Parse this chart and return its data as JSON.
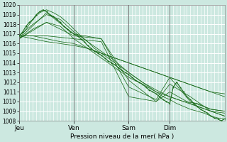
{
  "title": "",
  "xlabel": "Pression niveau de la mer( hPa )",
  "bg_color": "#cce8e0",
  "plot_bg_color": "#cce8e0",
  "grid_color": "#ffffff",
  "line_color": "#1a6b1a",
  "ylim": [
    1008,
    1020
  ],
  "ytick_step": 1,
  "xtick_minor_step": 6,
  "day_labels": [
    "Jeu",
    "Ven",
    "Sam",
    "Dim"
  ],
  "day_positions": [
    0,
    96,
    192,
    264
  ],
  "total_steps": 360,
  "lines": [
    {
      "x": [
        0,
        12,
        24,
        36,
        48,
        60,
        72,
        84,
        96,
        108,
        120,
        132,
        144,
        156,
        168,
        180,
        192,
        204,
        216,
        228,
        240,
        252,
        264,
        276,
        288,
        300,
        312,
        324,
        336,
        348,
        360
      ],
      "y": [
        1016.5,
        1017.5,
        1018.5,
        1019.2,
        1019.5,
        1019.2,
        1018.8,
        1018.2,
        1017.5,
        1016.8,
        1016.2,
        1015.5,
        1015.0,
        1014.5,
        1014.0,
        1013.5,
        1013.0,
        1012.5,
        1012.0,
        1011.5,
        1011.0,
        1010.5,
        1010.2,
        1009.8,
        1009.5,
        1009.2,
        1009.0,
        1008.8,
        1008.5,
        1008.3,
        1008.2
      ]
    },
    {
      "x": [
        0,
        24,
        48,
        72,
        96,
        120,
        144,
        168,
        192,
        216,
        240,
        264,
        288,
        312,
        336,
        360
      ],
      "y": [
        1016.8,
        1018.0,
        1019.0,
        1018.5,
        1017.2,
        1016.2,
        1015.2,
        1014.2,
        1013.0,
        1012.0,
        1011.2,
        1010.5,
        1010.0,
        1009.5,
        1009.0,
        1008.5
      ]
    },
    {
      "x": [
        0,
        24,
        48,
        72,
        96,
        120,
        144,
        168,
        192,
        216,
        240,
        264,
        288,
        312,
        336,
        360
      ],
      "y": [
        1016.5,
        1017.5,
        1018.2,
        1017.8,
        1016.5,
        1015.5,
        1014.5,
        1013.5,
        1012.5,
        1011.8,
        1011.0,
        1010.5,
        1010.0,
        1009.8,
        1009.2,
        1009.0
      ]
    },
    {
      "x": [
        0,
        24,
        48,
        72,
        96,
        120,
        144,
        168,
        192,
        216,
        240,
        264,
        288,
        312,
        336,
        360
      ],
      "y": [
        1016.8,
        1016.8,
        1016.5,
        1016.2,
        1016.0,
        1015.5,
        1015.0,
        1014.5,
        1014.0,
        1013.5,
        1013.0,
        1012.5,
        1012.0,
        1011.5,
        1011.0,
        1010.8
      ]
    },
    {
      "x": [
        0,
        24,
        48,
        72,
        96,
        120,
        144,
        168,
        192,
        216,
        240,
        264,
        288,
        312,
        336,
        360
      ],
      "y": [
        1016.8,
        1016.5,
        1016.2,
        1016.0,
        1015.8,
        1015.5,
        1015.0,
        1014.5,
        1014.0,
        1013.5,
        1013.0,
        1012.5,
        1012.0,
        1011.5,
        1011.0,
        1010.5
      ]
    },
    {
      "x": [
        0,
        48,
        96,
        144,
        192,
        240,
        264,
        300,
        336,
        360
      ],
      "y": [
        1016.5,
        1019.2,
        1017.0,
        1016.5,
        1012.2,
        1010.0,
        1011.8,
        1010.5,
        1009.0,
        1008.5
      ]
    },
    {
      "x": [
        0,
        48,
        96,
        144,
        192,
        240,
        264,
        300,
        336,
        360
      ],
      "y": [
        1016.5,
        1018.2,
        1016.8,
        1016.5,
        1011.5,
        1010.2,
        1012.5,
        1010.0,
        1009.2,
        1009.0
      ]
    },
    {
      "x": [
        0,
        48,
        96,
        144,
        192,
        240,
        264,
        300,
        336,
        360
      ],
      "y": [
        1016.8,
        1016.8,
        1016.5,
        1016.2,
        1010.5,
        1010.0,
        1011.0,
        1009.8,
        1009.0,
        1008.8
      ]
    }
  ],
  "marker_line": {
    "x": [
      0,
      6,
      12,
      18,
      24,
      30,
      36,
      42,
      48,
      54,
      60,
      66,
      72,
      78,
      84,
      90,
      96,
      102,
      108,
      114,
      120,
      126,
      132,
      138,
      144,
      150,
      156,
      162,
      168,
      174,
      180,
      186,
      192,
      198,
      204,
      210,
      216,
      222,
      228,
      234,
      240,
      246,
      252,
      258,
      264,
      270,
      276,
      282,
      288,
      294,
      300,
      306,
      312,
      318,
      324,
      330,
      336,
      342,
      348,
      354,
      360
    ],
    "y": [
      1016.8,
      1017.2,
      1017.8,
      1018.2,
      1018.5,
      1019.0,
      1019.3,
      1019.5,
      1019.3,
      1019.0,
      1018.8,
      1018.5,
      1018.2,
      1017.8,
      1017.5,
      1017.2,
      1017.0,
      1016.8,
      1016.5,
      1016.2,
      1015.8,
      1015.5,
      1015.2,
      1015.0,
      1014.8,
      1014.5,
      1014.2,
      1014.0,
      1013.8,
      1013.5,
      1013.2,
      1013.0,
      1012.8,
      1012.5,
      1012.2,
      1012.0,
      1011.8,
      1011.5,
      1011.2,
      1011.0,
      1010.8,
      1010.5,
      1010.2,
      1010.0,
      1009.8,
      1011.5,
      1012.0,
      1011.5,
      1011.0,
      1010.5,
      1010.2,
      1009.8,
      1009.5,
      1009.2,
      1009.0,
      1008.8,
      1008.5,
      1008.3,
      1008.2,
      1008.0,
      1008.2
    ]
  }
}
